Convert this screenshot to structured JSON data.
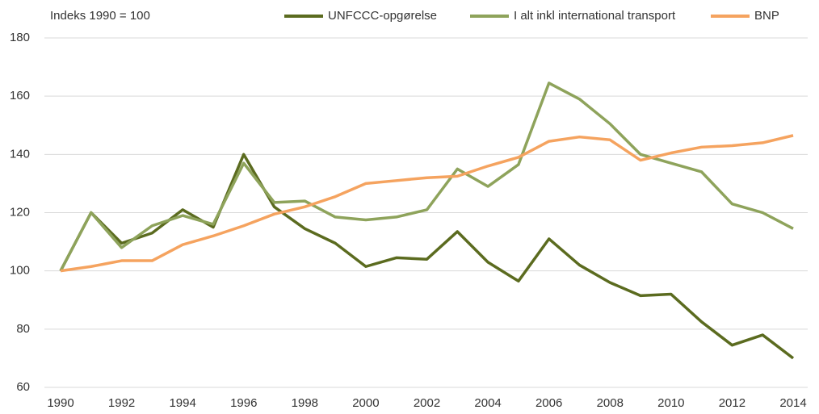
{
  "chart_data": {
    "type": "line",
    "annotation": "Indeks 1990 = 100",
    "x": [
      1990,
      1991,
      1992,
      1993,
      1994,
      1995,
      1996,
      1997,
      1998,
      1999,
      2000,
      2001,
      2002,
      2003,
      2004,
      2005,
      2006,
      2007,
      2008,
      2009,
      2010,
      2011,
      2012,
      2013,
      2014
    ],
    "series": [
      {
        "name": "UNFCCC-opgørelse",
        "color": "#5b6b1f",
        "values": [
          100,
          120,
          109.5,
          113,
          121,
          115,
          140,
          122,
          114.5,
          109.5,
          101.5,
          104.5,
          104,
          113.5,
          103,
          96.5,
          111,
          102,
          96,
          91.5,
          92,
          82.5,
          74.5,
          78,
          70
        ]
      },
      {
        "name": "I alt inkl international transport",
        "color": "#8ea35b",
        "values": [
          100,
          120,
          108,
          115.5,
          119,
          116,
          137,
          123.5,
          124,
          118.5,
          117.5,
          118.5,
          121,
          135,
          129,
          136.5,
          164.5,
          159,
          150.5,
          140,
          137,
          134,
          123,
          120,
          114.5
        ]
      },
      {
        "name": "BNP",
        "color": "#f5a35f",
        "values": [
          100,
          101.5,
          103.5,
          103.5,
          109,
          112,
          115.5,
          119.5,
          122,
          125.5,
          130,
          131,
          132,
          132.5,
          136,
          139,
          144.5,
          146,
          145,
          138,
          140.5,
          142.5,
          143,
          144,
          146.5
        ]
      }
    ],
    "xlim": [
      1990,
      2014
    ],
    "xticks": [
      1990,
      1992,
      1994,
      1996,
      1998,
      2000,
      2002,
      2004,
      2006,
      2008,
      2010,
      2012,
      2014
    ],
    "ylim": [
      60,
      180
    ],
    "yticks": [
      60,
      80,
      100,
      120,
      140,
      160,
      180
    ],
    "grid": true,
    "legend": "top"
  }
}
